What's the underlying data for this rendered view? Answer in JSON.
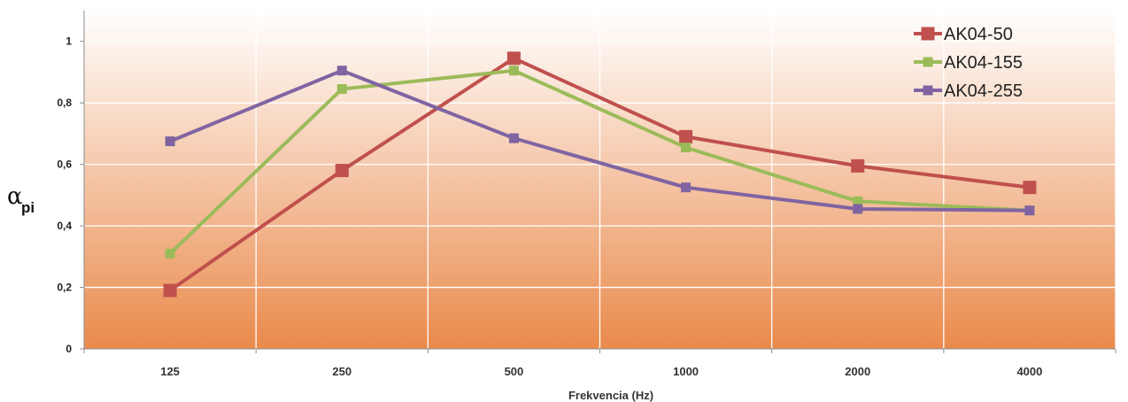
{
  "chart_data": {
    "type": "line",
    "xlabel": "Frekvencia (Hz)",
    "ylabel_main": "α",
    "ylabel_sub": "pi",
    "categories": [
      "125",
      "250",
      "500",
      "1000",
      "2000",
      "4000"
    ],
    "ylim": [
      0,
      1.1
    ],
    "yticks": [
      0,
      0.2,
      0.4,
      0.6,
      0.8,
      1
    ],
    "ytick_labels": [
      "0",
      "0,2",
      "0,4",
      "0,6",
      "0,8",
      "1"
    ],
    "grid": true,
    "legend_position": "top-right",
    "series": [
      {
        "name": "AK04-50",
        "color": "#c0504d",
        "marker": "square",
        "values": [
          0.19,
          0.58,
          0.945,
          0.69,
          0.595,
          0.525
        ]
      },
      {
        "name": "AK04-155",
        "color": "#9bbb59",
        "marker": "square",
        "values": [
          0.31,
          0.845,
          0.905,
          0.655,
          0.48,
          0.45
        ]
      },
      {
        "name": "AK04-255",
        "color": "#8064a2",
        "marker": "square",
        "values": [
          0.675,
          0.905,
          0.685,
          0.525,
          0.455,
          0.45
        ]
      }
    ],
    "background_gradient": [
      "#ffffff",
      "#ea8a4c"
    ]
  }
}
